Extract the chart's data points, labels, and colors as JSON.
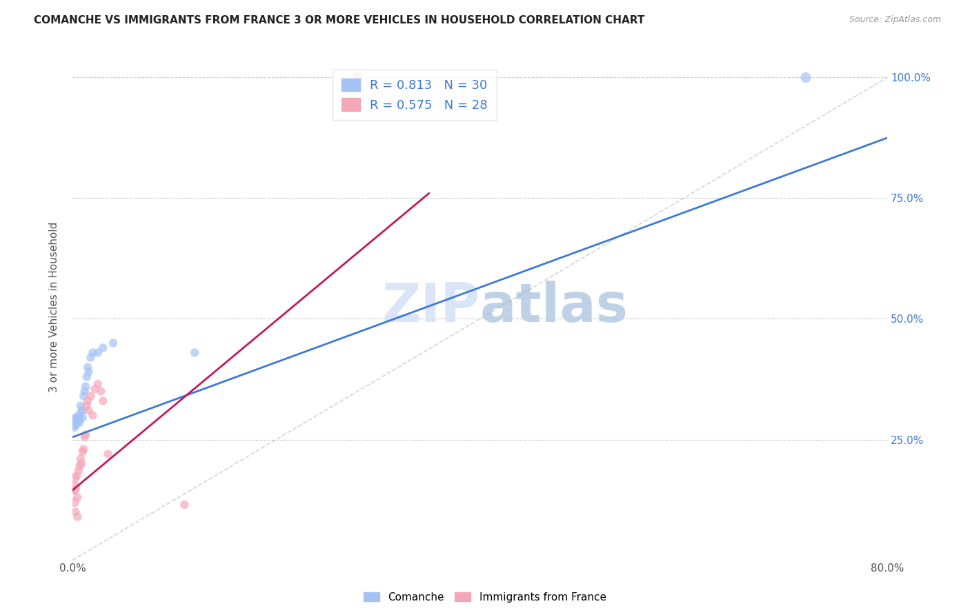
{
  "title": "COMANCHE VS IMMIGRANTS FROM FRANCE 3 OR MORE VEHICLES IN HOUSEHOLD CORRELATION CHART",
  "source": "Source: ZipAtlas.com",
  "ylabel": "3 or more Vehicles in Household",
  "xlim": [
    0.0,
    0.8
  ],
  "ylim": [
    0.0,
    1.05
  ],
  "legend_blue_R": "0.813",
  "legend_blue_N": "30",
  "legend_pink_R": "0.575",
  "legend_pink_N": "28",
  "legend_blue_label": "Comanche",
  "legend_pink_label": "Immigrants from France",
  "blue_color": "#a4c2f4",
  "pink_color": "#f4a7b9",
  "blue_line_color": "#3c78d8",
  "pink_line_color": "#c2185b",
  "watermark_color": "#d6e4f7",
  "blue_scatter_x": [
    0.001,
    0.002,
    0.002,
    0.003,
    0.003,
    0.004,
    0.004,
    0.005,
    0.005,
    0.006,
    0.006,
    0.007,
    0.007,
    0.008,
    0.009,
    0.01,
    0.01,
    0.011,
    0.012,
    0.013,
    0.014,
    0.015,
    0.016,
    0.018,
    0.02,
    0.025,
    0.03,
    0.04,
    0.12,
    0.72
  ],
  "blue_scatter_y": [
    0.285,
    0.29,
    0.275,
    0.28,
    0.295,
    0.285,
    0.295,
    0.29,
    0.285,
    0.3,
    0.29,
    0.295,
    0.285,
    0.32,
    0.31,
    0.295,
    0.31,
    0.34,
    0.35,
    0.36,
    0.38,
    0.4,
    0.39,
    0.42,
    0.43,
    0.43,
    0.44,
    0.45,
    0.43,
    1.0
  ],
  "blue_marker_sizes": [
    200,
    100,
    80,
    80,
    80,
    80,
    80,
    80,
    80,
    80,
    80,
    80,
    80,
    80,
    80,
    80,
    80,
    80,
    80,
    80,
    80,
    80,
    80,
    80,
    80,
    80,
    80,
    80,
    80,
    120
  ],
  "pink_scatter_x": [
    0.001,
    0.002,
    0.002,
    0.003,
    0.003,
    0.004,
    0.005,
    0.005,
    0.006,
    0.007,
    0.008,
    0.009,
    0.01,
    0.011,
    0.012,
    0.013,
    0.014,
    0.015,
    0.016,
    0.018,
    0.02,
    0.022,
    0.025,
    0.028,
    0.03,
    0.035,
    0.11,
    0.28
  ],
  "pink_scatter_y": [
    0.15,
    0.12,
    0.145,
    0.1,
    0.17,
    0.175,
    0.09,
    0.13,
    0.185,
    0.195,
    0.21,
    0.2,
    0.225,
    0.23,
    0.255,
    0.26,
    0.32,
    0.33,
    0.31,
    0.34,
    0.3,
    0.355,
    0.365,
    0.35,
    0.33,
    0.22,
    0.115,
    1.0
  ],
  "pink_marker_sizes": [
    200,
    100,
    80,
    80,
    80,
    80,
    80,
    80,
    80,
    80,
    80,
    80,
    80,
    80,
    80,
    80,
    80,
    80,
    80,
    80,
    80,
    80,
    80,
    80,
    80,
    80,
    80,
    120
  ],
  "blue_line_x": [
    0.0,
    0.8
  ],
  "blue_line_y": [
    0.255,
    0.875
  ],
  "pink_line_x": [
    0.0,
    0.35
  ],
  "pink_line_y": [
    0.145,
    0.76
  ],
  "ref_line_x": [
    0.0,
    0.8
  ],
  "ref_line_y": [
    0.0,
    1.0
  ]
}
